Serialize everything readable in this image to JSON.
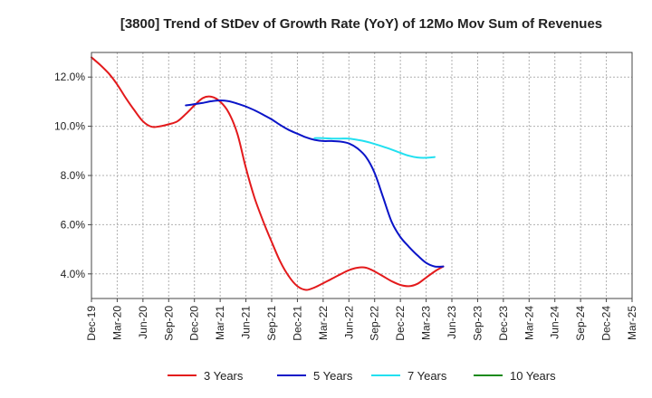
{
  "chart_data": {
    "type": "line",
    "title": "[3800]  Trend of StDev of Growth Rate (YoY) of 12Mo Mov Sum of Revenues",
    "xlabel": "",
    "ylabel": "",
    "ylim": [
      3.0,
      13.0
    ],
    "yticks": [
      4.0,
      6.0,
      8.0,
      10.0,
      12.0
    ],
    "ytick_labels": [
      "4.0%",
      "6.0%",
      "8.0%",
      "10.0%",
      "12.0%"
    ],
    "x_tick_labels": [
      "Dec-19",
      "Mar-20",
      "Jun-20",
      "Sep-20",
      "Dec-20",
      "Mar-21",
      "Jun-21",
      "Sep-21",
      "Dec-21",
      "Mar-22",
      "Jun-22",
      "Sep-22",
      "Dec-22",
      "Mar-23",
      "Jun-23",
      "Sep-23",
      "Dec-23",
      "Mar-24",
      "Jun-24",
      "Sep-24",
      "Dec-24",
      "Mar-25"
    ],
    "grid": true,
    "legend_position": "bottom",
    "series": [
      {
        "name": "3 Years",
        "color": "#e31a1c",
        "values": [
          12.8,
          12.5,
          12.15,
          11.7,
          11.15,
          10.65,
          10.2,
          9.98,
          10.0,
          10.08,
          10.2,
          10.5,
          10.85,
          11.15,
          11.2,
          11.0,
          10.55,
          9.7,
          8.3,
          7.1,
          6.15,
          5.3,
          4.5,
          3.9,
          3.5,
          3.35,
          3.45,
          3.62,
          3.8,
          3.98,
          4.15,
          4.25,
          4.25,
          4.1,
          3.9,
          3.7,
          3.55,
          3.5,
          3.6,
          3.85,
          4.1,
          4.3
        ]
      },
      {
        "name": "5 Years",
        "color": "#0a14c8",
        "values": [
          null,
          null,
          null,
          null,
          null,
          null,
          null,
          null,
          null,
          null,
          null,
          10.85,
          10.9,
          10.95,
          11.02,
          11.05,
          11.02,
          10.92,
          10.8,
          10.65,
          10.47,
          10.28,
          10.05,
          9.85,
          9.7,
          9.55,
          9.45,
          9.4,
          9.4,
          9.38,
          9.3,
          9.1,
          8.75,
          8.1,
          7.1,
          6.1,
          5.5,
          5.1,
          4.75,
          4.45,
          4.3,
          4.3
        ]
      },
      {
        "name": "7 Years",
        "color": "#22e0f0",
        "values": [
          null,
          null,
          null,
          null,
          null,
          null,
          null,
          null,
          null,
          null,
          null,
          null,
          null,
          null,
          null,
          null,
          null,
          null,
          null,
          null,
          null,
          null,
          null,
          null,
          null,
          null,
          9.52,
          9.52,
          9.5,
          9.5,
          9.5,
          9.45,
          9.38,
          9.28,
          9.17,
          9.05,
          8.92,
          8.8,
          8.73,
          8.72,
          8.75
        ]
      },
      {
        "name": "10 Years",
        "color": "#1a8a1a",
        "values": []
      }
    ]
  }
}
